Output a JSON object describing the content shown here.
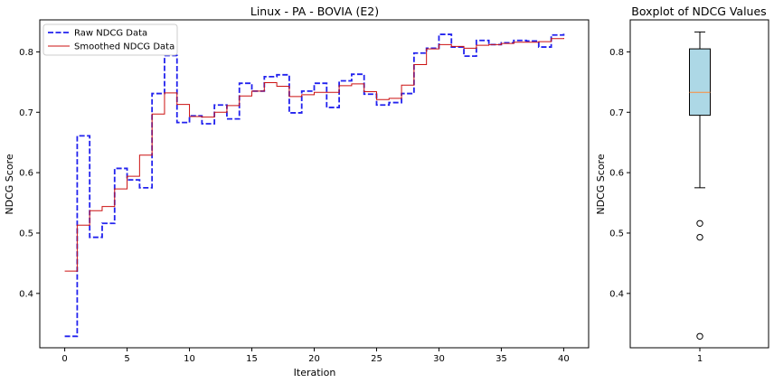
{
  "chart_data": [
    {
      "type": "line",
      "title": "Linux - PA - BOVIA (E2)",
      "xlabel": "Iteration",
      "ylabel": "NDCG Score",
      "xlim": [
        -2,
        42
      ],
      "ylim": [
        0.31,
        0.853
      ],
      "xticks": [
        "0",
        "5",
        "10",
        "15",
        "20",
        "25",
        "30",
        "35",
        "40"
      ],
      "yticks": [
        "0.4",
        "0.5",
        "0.6",
        "0.7",
        "0.8"
      ],
      "grid": false,
      "legend_position": "top-left",
      "step": "post",
      "x": [
        0,
        1,
        2,
        3,
        4,
        5,
        6,
        7,
        8,
        9,
        10,
        11,
        12,
        13,
        14,
        15,
        16,
        17,
        18,
        19,
        20,
        21,
        22,
        23,
        24,
        25,
        26,
        27,
        28,
        29,
        30,
        31,
        32,
        33,
        34,
        35,
        36,
        37,
        38,
        39,
        40
      ],
      "series": [
        {
          "name": "Raw NDCG Data",
          "color": "#2222ee",
          "style": "dashed",
          "values": [
            0.329,
            0.661,
            0.493,
            0.516,
            0.607,
            0.588,
            0.575,
            0.731,
            0.794,
            0.683,
            0.694,
            0.681,
            0.712,
            0.689,
            0.748,
            0.735,
            0.759,
            0.762,
            0.699,
            0.735,
            0.748,
            0.708,
            0.752,
            0.763,
            0.73,
            0.712,
            0.716,
            0.731,
            0.798,
            0.806,
            0.829,
            0.808,
            0.793,
            0.819,
            0.812,
            0.815,
            0.819,
            0.818,
            0.808,
            0.828,
            0.83
          ]
        },
        {
          "name": "Smoothed NDCG Data",
          "color": "#cc1111",
          "style": "solid",
          "values": [
            0.437,
            0.513,
            0.537,
            0.544,
            0.573,
            0.594,
            0.629,
            0.697,
            0.732,
            0.713,
            0.693,
            0.692,
            0.7,
            0.711,
            0.727,
            0.735,
            0.749,
            0.743,
            0.726,
            0.729,
            0.733,
            0.733,
            0.744,
            0.747,
            0.734,
            0.721,
            0.723,
            0.745,
            0.779,
            0.805,
            0.812,
            0.809,
            0.806,
            0.811,
            0.812,
            0.814,
            0.816,
            0.816,
            0.817,
            0.822,
            0.823
          ]
        }
      ]
    },
    {
      "type": "boxplot",
      "title": "Boxplot of NDCG Values",
      "xlabel": "",
      "ylabel": "NDCG Score",
      "ylim": [
        0.31,
        0.853
      ],
      "xticks": [
        "1"
      ],
      "yticks": [
        "0.4",
        "0.5",
        "0.6",
        "0.7",
        "0.8"
      ],
      "category": "1",
      "box_color": "#add8e6",
      "median_color": "#ff8c3a",
      "whisker_low": 0.575,
      "q1": 0.695,
      "median": 0.733,
      "q3": 0.805,
      "whisker_high": 0.833,
      "outliers": [
        0.516,
        0.493,
        0.329
      ]
    }
  ]
}
